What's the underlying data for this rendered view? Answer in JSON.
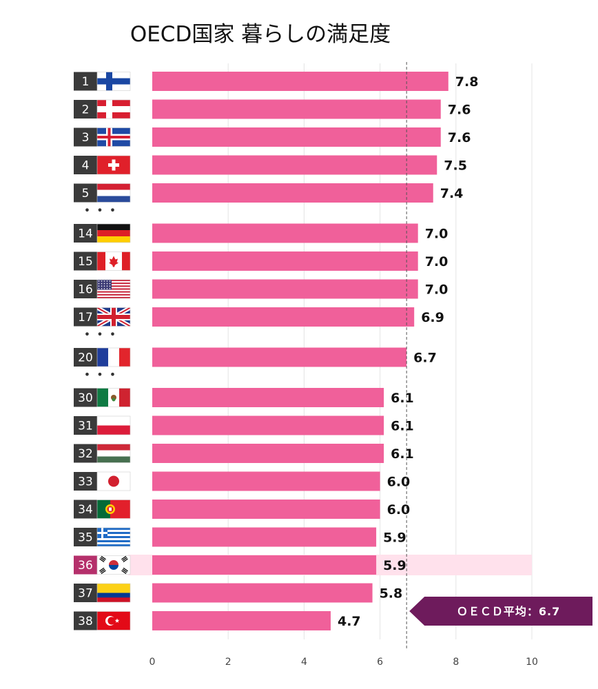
{
  "chart_data": {
    "type": "bar",
    "orientation": "horizontal",
    "title": "OECD国家 暮らしの満足度",
    "xlim": [
      0,
      10
    ],
    "x_ticks": [
      "0",
      "2",
      "4",
      "6",
      "8",
      "10"
    ],
    "grid": true,
    "bar_color": "#f0609a",
    "highlight_color": "#ffe1ec",
    "rank_box_color": "#3a3a3a",
    "highlight_rank_box_color": "#b5306b",
    "average": {
      "value": 6.7,
      "label": "ＯＥＣＤ平均：6.7",
      "label_color": "#6e1b5c"
    },
    "ellipsis": "• • •",
    "rows": [
      {
        "rank": "1",
        "flag": "finland",
        "value": 7.8,
        "label": "7.8"
      },
      {
        "rank": "2",
        "flag": "denmark",
        "value": 7.6,
        "label": "7.6"
      },
      {
        "rank": "3",
        "flag": "iceland",
        "value": 7.6,
        "label": "7.6"
      },
      {
        "rank": "4",
        "flag": "switzerland",
        "value": 7.5,
        "label": "7.5"
      },
      {
        "rank": "5",
        "flag": "netherlands",
        "value": 7.4,
        "label": "7.4",
        "gap_after": true
      },
      {
        "rank": "14",
        "flag": "germany",
        "value": 7.0,
        "label": "7.0"
      },
      {
        "rank": "15",
        "flag": "canada",
        "value": 7.0,
        "label": "7.0"
      },
      {
        "rank": "16",
        "flag": "usa",
        "value": 7.0,
        "label": "7.0"
      },
      {
        "rank": "17",
        "flag": "uk",
        "value": 6.9,
        "label": "6.9",
        "gap_after": true
      },
      {
        "rank": "20",
        "flag": "france",
        "value": 6.7,
        "label": "6.7",
        "gap_after": true
      },
      {
        "rank": "30",
        "flag": "mexico",
        "value": 6.1,
        "label": "6.1"
      },
      {
        "rank": "31",
        "flag": "poland",
        "value": 6.1,
        "label": "6.1"
      },
      {
        "rank": "32",
        "flag": "hungary",
        "value": 6.1,
        "label": "6.1"
      },
      {
        "rank": "33",
        "flag": "japan",
        "value": 6.0,
        "label": "6.0"
      },
      {
        "rank": "34",
        "flag": "portugal",
        "value": 6.0,
        "label": "6.0"
      },
      {
        "rank": "35",
        "flag": "greece",
        "value": 5.9,
        "label": "5.9"
      },
      {
        "rank": "36",
        "flag": "south-korea",
        "value": 5.9,
        "label": "5.9",
        "highlight": true
      },
      {
        "rank": "37",
        "flag": "colombia",
        "value": 5.8,
        "label": "5.8"
      },
      {
        "rank": "38",
        "flag": "turkey",
        "value": 4.7,
        "label": "4.7"
      }
    ]
  }
}
